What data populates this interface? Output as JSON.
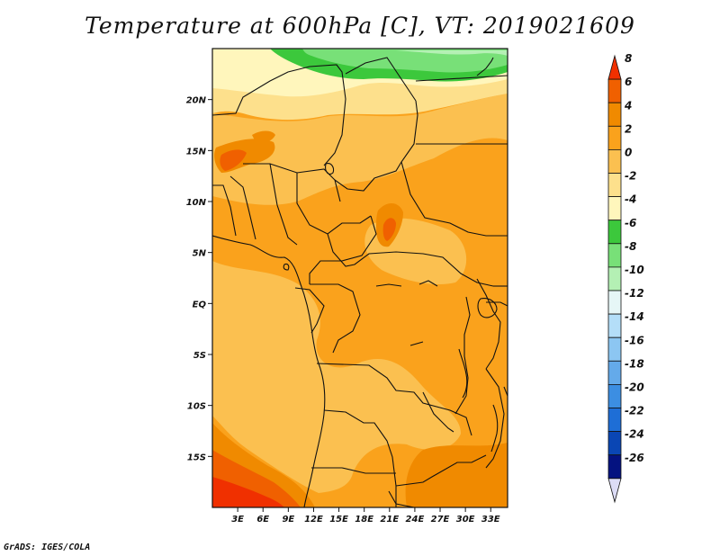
{
  "title": "Temperature at 600hPa [C], VT: 2019021609",
  "credit": "GrADS: IGES/COLA",
  "map": {
    "lon_range": [
      0,
      35
    ],
    "lat_range": [
      -20,
      25
    ],
    "lon_ticks": [
      {
        "value": 3,
        "label": "3E"
      },
      {
        "value": 6,
        "label": "6E"
      },
      {
        "value": 9,
        "label": "9E"
      },
      {
        "value": 12,
        "label": "12E"
      },
      {
        "value": 15,
        "label": "15E"
      },
      {
        "value": 18,
        "label": "18E"
      },
      {
        "value": 21,
        "label": "21E"
      },
      {
        "value": 24,
        "label": "24E"
      },
      {
        "value": 27,
        "label": "27E"
      },
      {
        "value": 30,
        "label": "30E"
      },
      {
        "value": 33,
        "label": "33E"
      }
    ],
    "lat_ticks": [
      {
        "value": 20,
        "label": "20N"
      },
      {
        "value": 15,
        "label": "15N"
      },
      {
        "value": 10,
        "label": "10N"
      },
      {
        "value": 5,
        "label": "5N"
      },
      {
        "value": 0,
        "label": "EQ"
      },
      {
        "value": -5,
        "label": "5S"
      },
      {
        "value": -10,
        "label": "10S"
      },
      {
        "value": -15,
        "label": "15S"
      }
    ]
  },
  "colorbar": {
    "levels": [
      "8",
      "6",
      "4",
      "2",
      "0",
      "-2",
      "-4",
      "-6",
      "-8",
      "-10",
      "-12",
      "-14",
      "-16",
      "-18",
      "-20",
      "-22",
      "-24",
      "-26"
    ],
    "colors": [
      "#f03000",
      "#f06000",
      "#f08a00",
      "#faa21c",
      "#fbc050",
      "#fde08c",
      "#fff6bc",
      "#3cc83c",
      "#78e078",
      "#b4f0b4",
      "#e6f6f6",
      "#b4def8",
      "#8cc6f2",
      "#64aaea",
      "#3c8ee2",
      "#1e6ed6",
      "#0a46b4",
      "#041280",
      "#dcdcf6"
    ]
  },
  "field_colors": {
    "c_m4": "#fff6bc",
    "c_m2": "#fde08c",
    "c_0": "#fbc050",
    "c_2": "#faa21c",
    "c_4": "#f08a00",
    "c_6": "#f06000",
    "c_8": "#f03000",
    "c_m6": "#3cc83c",
    "c_m8": "#78e078",
    "c_m10": "#b4f0b4"
  }
}
